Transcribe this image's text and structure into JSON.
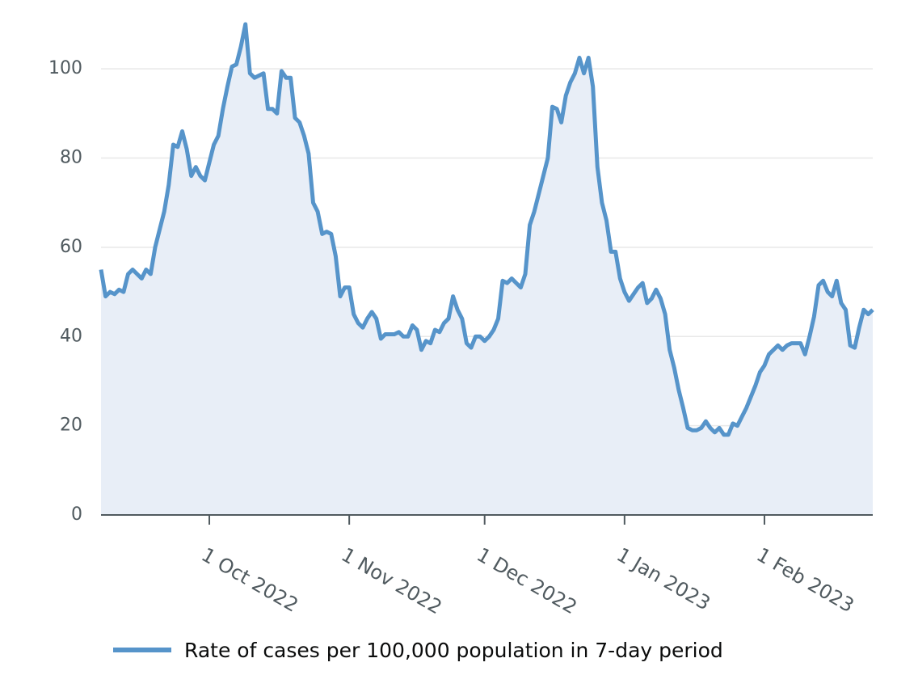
{
  "chart_data": {
    "type": "area",
    "x": [
      "2022-09-07",
      "2022-09-08",
      "2022-09-09",
      "2022-09-10",
      "2022-09-11",
      "2022-09-12",
      "2022-09-13",
      "2022-09-14",
      "2022-09-15",
      "2022-09-16",
      "2022-09-17",
      "2022-09-18",
      "2022-09-19",
      "2022-09-20",
      "2022-09-21",
      "2022-09-22",
      "2022-09-23",
      "2022-09-24",
      "2022-09-25",
      "2022-09-26",
      "2022-09-27",
      "2022-09-28",
      "2022-09-29",
      "2022-09-30",
      "2022-10-01",
      "2022-10-02",
      "2022-10-03",
      "2022-10-04",
      "2022-10-05",
      "2022-10-06",
      "2022-10-07",
      "2022-10-08",
      "2022-10-09",
      "2022-10-10",
      "2022-10-11",
      "2022-10-12",
      "2022-10-13",
      "2022-10-14",
      "2022-10-15",
      "2022-10-16",
      "2022-10-17",
      "2022-10-18",
      "2022-10-19",
      "2022-10-20",
      "2022-10-21",
      "2022-10-22",
      "2022-10-23",
      "2022-10-24",
      "2022-10-25",
      "2022-10-26",
      "2022-10-27",
      "2022-10-28",
      "2022-10-29",
      "2022-10-30",
      "2022-10-31",
      "2022-11-01",
      "2022-11-02",
      "2022-11-03",
      "2022-11-04",
      "2022-11-05",
      "2022-11-06",
      "2022-11-07",
      "2022-11-08",
      "2022-11-09",
      "2022-11-10",
      "2022-11-11",
      "2022-11-12",
      "2022-11-13",
      "2022-11-14",
      "2022-11-15",
      "2022-11-16",
      "2022-11-17",
      "2022-11-18",
      "2022-11-19",
      "2022-11-20",
      "2022-11-21",
      "2022-11-22",
      "2022-11-23",
      "2022-11-24",
      "2022-11-25",
      "2022-11-26",
      "2022-11-27",
      "2022-11-28",
      "2022-11-29",
      "2022-11-30",
      "2022-12-01",
      "2022-12-02",
      "2022-12-03",
      "2022-12-04",
      "2022-12-05",
      "2022-12-06",
      "2022-12-07",
      "2022-12-08",
      "2022-12-09",
      "2022-12-10",
      "2022-12-11",
      "2022-12-12",
      "2022-12-13",
      "2022-12-14",
      "2022-12-15",
      "2022-12-16",
      "2022-12-17",
      "2022-12-18",
      "2022-12-19",
      "2022-12-20",
      "2022-12-21",
      "2022-12-22",
      "2022-12-23",
      "2022-12-24",
      "2022-12-25",
      "2022-12-26",
      "2022-12-27",
      "2022-12-28",
      "2022-12-29",
      "2022-12-30",
      "2022-12-31",
      "2023-01-01",
      "2023-01-02",
      "2023-01-03",
      "2023-01-04",
      "2023-01-05",
      "2023-01-06",
      "2023-01-07",
      "2023-01-08",
      "2023-01-09",
      "2023-01-10",
      "2023-01-11",
      "2023-01-12",
      "2023-01-13",
      "2023-01-14",
      "2023-01-15",
      "2023-01-16",
      "2023-01-17",
      "2023-01-18",
      "2023-01-19",
      "2023-01-20",
      "2023-01-21",
      "2023-01-22",
      "2023-01-23",
      "2023-01-24",
      "2023-01-25",
      "2023-01-26",
      "2023-01-27",
      "2023-01-28",
      "2023-01-29",
      "2023-01-30",
      "2023-01-31",
      "2023-02-01",
      "2023-02-02",
      "2023-02-03",
      "2023-02-04",
      "2023-02-05",
      "2023-02-06",
      "2023-02-07",
      "2023-02-08",
      "2023-02-09",
      "2023-02-10",
      "2023-02-11",
      "2023-02-12",
      "2023-02-13",
      "2023-02-14",
      "2023-02-15",
      "2023-02-16",
      "2023-02-17",
      "2023-02-18",
      "2023-02-19",
      "2023-02-20",
      "2023-02-21",
      "2023-02-22",
      "2023-02-23",
      "2023-02-24",
      "2023-02-25"
    ],
    "series": [
      {
        "name": "Rate of cases per 100,000 population in 7-day period",
        "color": "#5694ca",
        "fill": "#e8eef7",
        "values": [
          55,
          49,
          50,
          49.5,
          50.5,
          50,
          54,
          55,
          54,
          53,
          55,
          54,
          60,
          64,
          68,
          74,
          83,
          82.5,
          86,
          82,
          76,
          78,
          76,
          75,
          79,
          83,
          85,
          91,
          96,
          100.5,
          101,
          105,
          110,
          99,
          98,
          98.5,
          99,
          91,
          91,
          90,
          99.5,
          98,
          98,
          89,
          88,
          85,
          81,
          70,
          68,
          63,
          63.5,
          63,
          58,
          49,
          51,
          51,
          45,
          43,
          42,
          44,
          45.5,
          44,
          39.5,
          40.5,
          40.5,
          40.5,
          41,
          40,
          40,
          42.5,
          41.5,
          37,
          39,
          38.5,
          41.5,
          41,
          43,
          44,
          49,
          46,
          44,
          38.5,
          37.5,
          40,
          40,
          39,
          40,
          41.5,
          44,
          52.5,
          52,
          53,
          52,
          51,
          54,
          65,
          68,
          72,
          76,
          80,
          91.5,
          91,
          88,
          94,
          97,
          99,
          102.5,
          99,
          102.5,
          96,
          78,
          70,
          66,
          59,
          59,
          53,
          50,
          48,
          49.5,
          51,
          52,
          47.5,
          48.5,
          50.5,
          48.5,
          45,
          37,
          33,
          28,
          24,
          19.5,
          19,
          19,
          19.5,
          21,
          19.5,
          18.5,
          19.5,
          18,
          18,
          20.5,
          20,
          22,
          24,
          26.5,
          29,
          32,
          33.5,
          36,
          37,
          38,
          37,
          38,
          38.5,
          38.5,
          38.5,
          36,
          40,
          44.5,
          51.5,
          52.5,
          50,
          49,
          52.5,
          47.5,
          46,
          38,
          37.5,
          42,
          46,
          45,
          46
        ]
      }
    ],
    "xlim": [
      "2022-09-07",
      "2023-02-25"
    ],
    "xticks": [
      {
        "value": "2022-10-01",
        "label": "1 Oct 2022"
      },
      {
        "value": "2022-11-01",
        "label": "1 Nov 2022"
      },
      {
        "value": "2022-12-01",
        "label": "1 Dec 2022"
      },
      {
        "value": "2023-01-01",
        "label": "1 Jan 2023"
      },
      {
        "value": "2023-02-01",
        "label": "1 Feb 2023"
      }
    ],
    "ylim": [
      0,
      110
    ],
    "yticks": [
      0,
      20,
      40,
      60,
      80,
      100
    ],
    "grid": true
  }
}
